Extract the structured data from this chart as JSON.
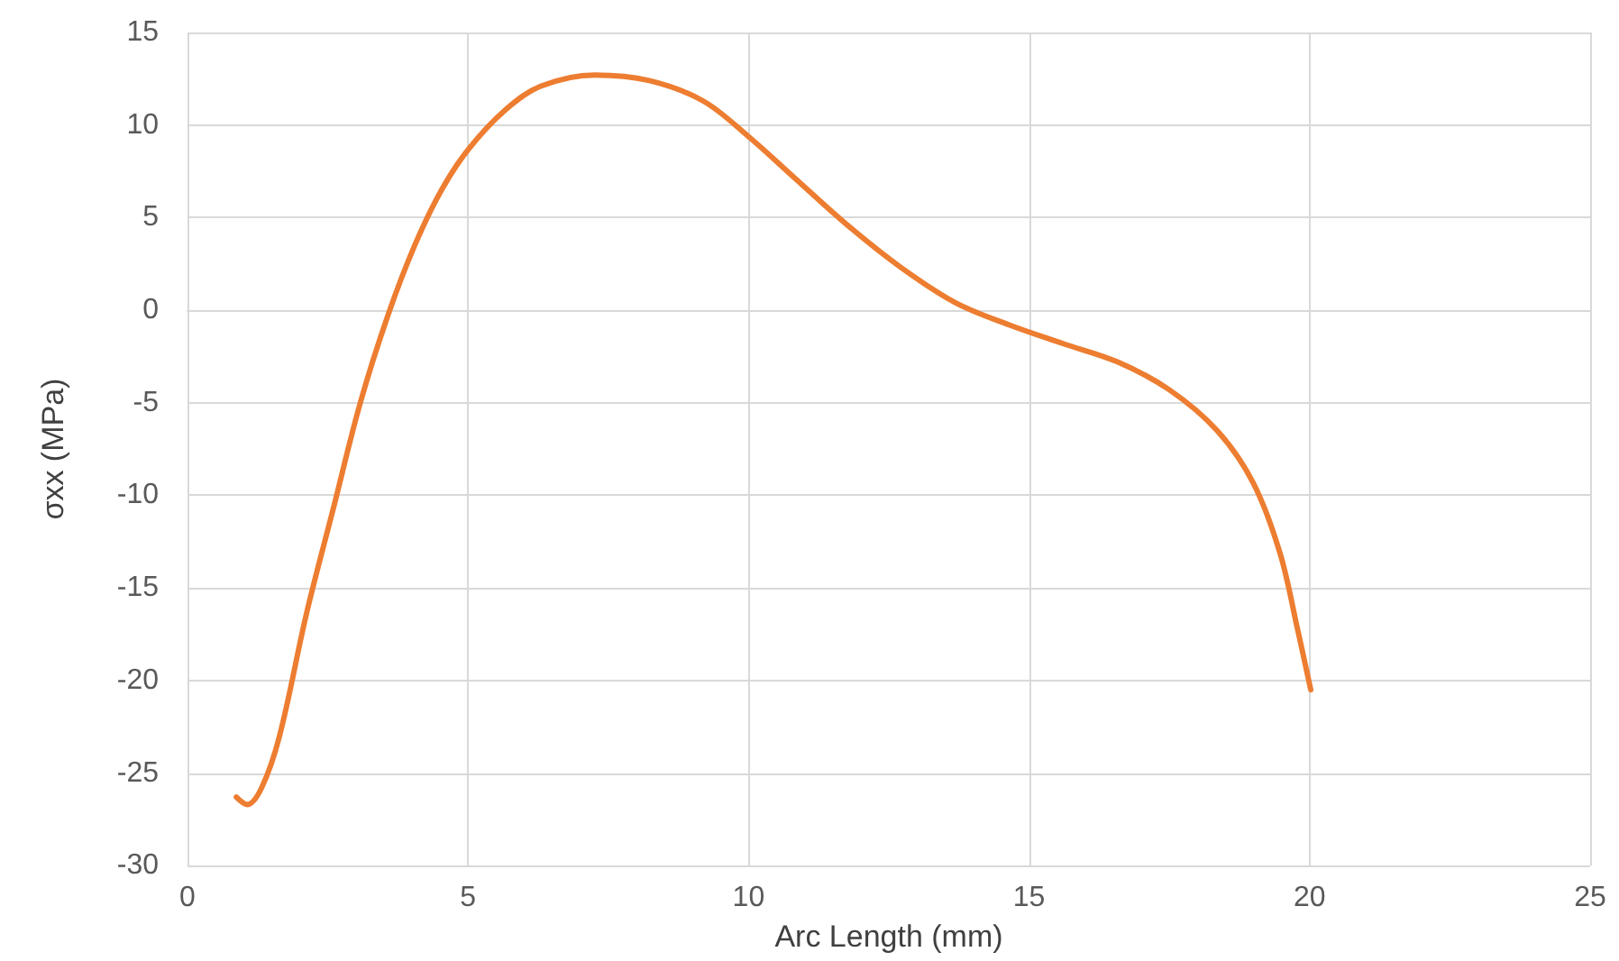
{
  "chart_data": {
    "type": "line",
    "xlabel": "Arc Length (mm)",
    "ylabel": "σxx (MPa)",
    "series": [
      {
        "color": "#ed7d31",
        "x": [
          0.87,
          1.06,
          1.32,
          1.64,
          2.12,
          2.6,
          3.08,
          3.57,
          4.05,
          4.53,
          5.01,
          5.66,
          6.3,
          7.26,
          8.23,
          9.19,
          9.99,
          10.8,
          11.76,
          12.72,
          13.69,
          14.65,
          15.6,
          16.58,
          17.5,
          18.35,
          18.99,
          19.47,
          19.79,
          20.02
        ],
        "values": [
          -26.3,
          -26.7,
          -25.8,
          -23.0,
          -16.4,
          -10.7,
          -5.0,
          -0.3,
          3.5,
          6.5,
          8.7,
          10.8,
          12.1,
          12.7,
          12.4,
          11.3,
          9.4,
          7.2,
          4.6,
          2.3,
          0.4,
          -0.8,
          -1.8,
          -2.8,
          -4.3,
          -6.5,
          -9.3,
          -13.1,
          -17.3,
          -20.5
        ]
      }
    ],
    "xlim": [
      0,
      25
    ],
    "xticks": [
      0,
      5,
      10,
      15,
      20,
      25
    ],
    "ylim": [
      -30,
      15
    ],
    "yticks": [
      -30,
      -25,
      -20,
      -15,
      -10,
      -5,
      0,
      5,
      10,
      15
    ],
    "grid": true,
    "marker": "none",
    "line_style": "solid"
  }
}
